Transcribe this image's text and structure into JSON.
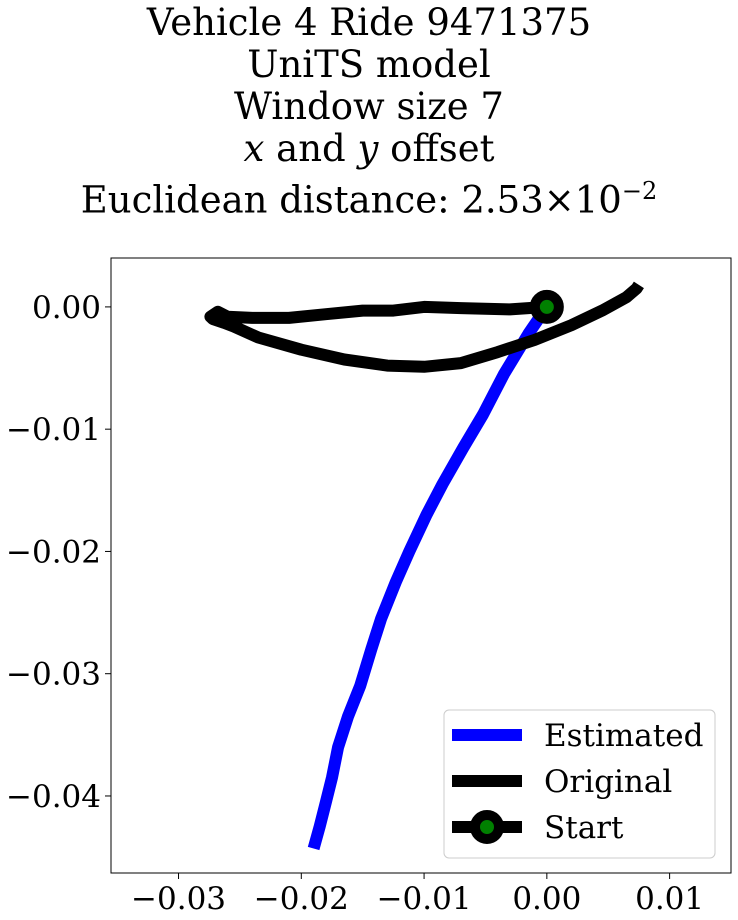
{
  "chart_data": {
    "type": "line",
    "title_lines": {
      "line1": "Vehicle 4 Ride 9471375",
      "line2": "UniTS model",
      "line3": "Window size 7",
      "line4_x": "x",
      "line4_and": " and ",
      "line4_y": "y",
      "line4_rest": " offset",
      "line5_prefix": "Euclidean distance: 2.53",
      "line5_times": "×10",
      "line5_exp": "−2"
    },
    "xlim": [
      -0.0355,
      0.015
    ],
    "ylim": [
      -0.0463,
      0.004
    ],
    "x_ticks": [
      {
        "value": -0.03,
        "label": "−0.03"
      },
      {
        "value": -0.02,
        "label": "−0.02"
      },
      {
        "value": -0.01,
        "label": "−0.01"
      },
      {
        "value": 0.0,
        "label": "0.00"
      },
      {
        "value": 0.01,
        "label": "0.01"
      }
    ],
    "y_ticks": [
      {
        "value": 0.0,
        "label": "0.00"
      },
      {
        "value": -0.01,
        "label": "−0.01"
      },
      {
        "value": -0.02,
        "label": "−0.02"
      },
      {
        "value": -0.03,
        "label": "−0.03"
      },
      {
        "value": -0.04,
        "label": "−0.04"
      }
    ],
    "grid": false,
    "legend_position": "lower-right",
    "series": [
      {
        "name": "Estimated",
        "color": "#0000ff",
        "x": [
          0.0,
          -0.0015,
          -0.0035,
          -0.0052,
          -0.0068,
          -0.0085,
          -0.0098,
          -0.0112,
          -0.0123,
          -0.0135,
          -0.0143,
          -0.0152,
          -0.0162,
          -0.017,
          -0.0175,
          -0.018,
          -0.0185,
          -0.019
        ],
        "y": [
          0.0,
          -0.0022,
          -0.0055,
          -0.0088,
          -0.0115,
          -0.0145,
          -0.017,
          -0.02,
          -0.0225,
          -0.0255,
          -0.028,
          -0.031,
          -0.0335,
          -0.036,
          -0.0385,
          -0.0405,
          -0.0425,
          -0.0443
        ]
      },
      {
        "name": "Original",
        "color": "#000000",
        "x": [
          0.0,
          -0.003,
          -0.007,
          -0.01,
          -0.0125,
          -0.015,
          -0.018,
          -0.021,
          -0.024,
          -0.026,
          -0.0268,
          -0.0274,
          -0.0272,
          -0.0263,
          -0.0255,
          -0.0235,
          -0.02,
          -0.0165,
          -0.013,
          -0.01,
          -0.007,
          -0.004,
          -0.001,
          0.002,
          0.0045,
          0.0065,
          0.0073,
          0.0075
        ],
        "y": [
          0.0,
          -0.0002,
          -0.0001,
          0.0,
          -0.0003,
          -0.0003,
          -0.0006,
          -0.0009,
          -0.0009,
          -0.0008,
          -0.0004,
          -0.0008,
          -0.001,
          -0.0013,
          -0.0016,
          -0.0025,
          -0.0035,
          -0.0043,
          -0.0048,
          -0.0049,
          -0.0046,
          -0.0037,
          -0.0027,
          -0.0015,
          -0.0003,
          0.0008,
          0.0015,
          0.0018
        ]
      }
    ],
    "start_marker": {
      "name": "Start",
      "x": 0.0,
      "y": 0.0,
      "edge_color": "#000000",
      "face_color": "#008000"
    },
    "legend": [
      "Estimated",
      "Original",
      "Start"
    ]
  }
}
